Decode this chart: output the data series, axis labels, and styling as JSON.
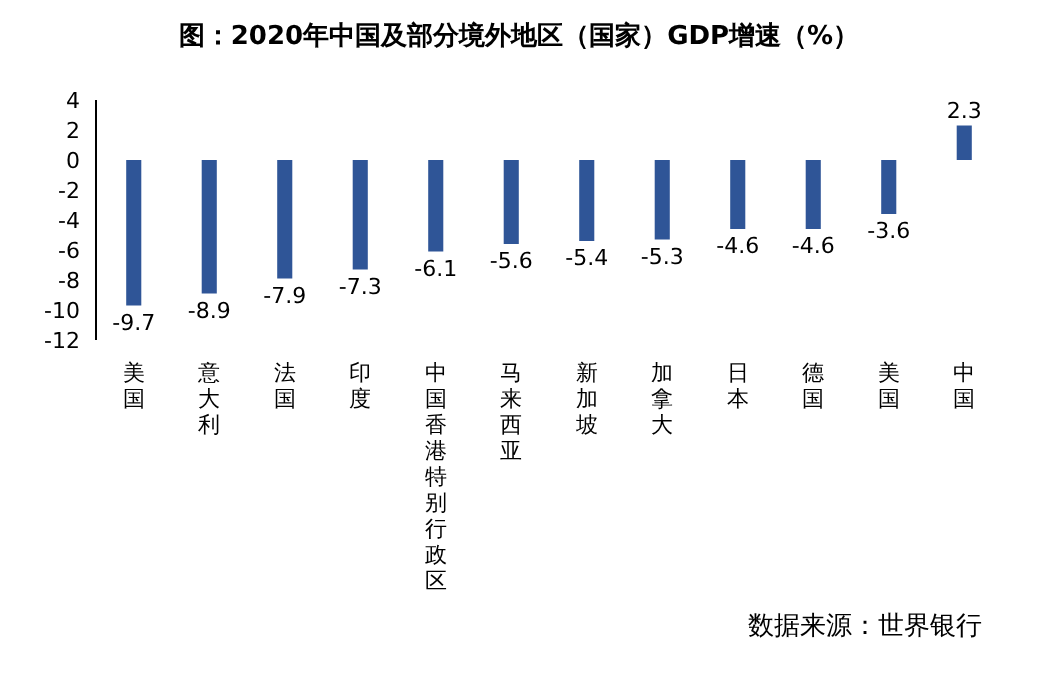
{
  "chart_data": {
    "type": "bar",
    "title": "图：2020年中国及部分境外地区（国家）GDP增速（%）",
    "categories": [
      "美国",
      "意大利",
      "法国",
      "印度",
      "中国香港特别行政区",
      "马来西亚",
      "新加坡",
      "加拿大",
      "日本",
      "德国",
      "美国",
      "中国"
    ],
    "values": [
      -9.7,
      -8.9,
      -7.9,
      -7.3,
      -6.1,
      -5.6,
      -5.4,
      -5.3,
      -4.6,
      -4.6,
      -3.6,
      2.3
    ],
    "color": "#2f5597",
    "ylim": [
      -12,
      4
    ],
    "yticks": [
      -12,
      -10,
      -8,
      -6,
      -4,
      -2,
      0,
      2,
      4
    ],
    "data_labels": true,
    "annotations": [
      "数据来源：世界银行"
    ]
  }
}
